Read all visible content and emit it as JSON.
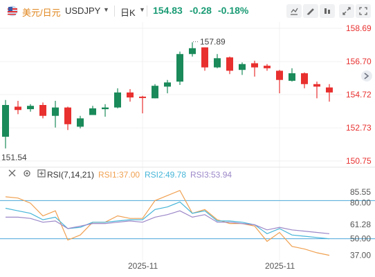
{
  "header": {
    "pair_cn": "美元/日元",
    "pair_symbol": "USDJPY",
    "period": "日K",
    "last_price": "154.83",
    "change": "-0.28",
    "change_pct": "-0.18%",
    "price_color": "#1a9b74"
  },
  "indicator": {
    "name": "RSI(7,14,21)",
    "rsi1_label": "RSI1:37.00",
    "rsi2_label": "RSI2:49.78",
    "rsi3_label": "RSI3:53.94",
    "rsi1_color": "#f0a050",
    "rsi2_color": "#45b5d8",
    "rsi3_color": "#9b87c8"
  },
  "icons": [
    "flag-icon",
    "close-icon",
    "settings-icon",
    "indicator-icon",
    "fullscreen-icon",
    "draw-icon",
    "compare-icon",
    "expand-icon",
    "scroll-arrow-icon"
  ],
  "chart_data": [
    {
      "type": "candlestick",
      "title": "USDJPY 日K",
      "y_ticks": [
        "158.69",
        "156.70",
        "154.72",
        "152.73",
        "150.75"
      ],
      "ylim": [
        150.75,
        158.69
      ],
      "x_ticks": [
        {
          "index": 11,
          "label": "2025-11"
        },
        {
          "index": 22,
          "label": "2025-11"
        }
      ],
      "annotations": [
        {
          "label": "157.89",
          "value": 157.89,
          "index": 15
        },
        {
          "label": "151.54",
          "value": 151.54,
          "index": 0
        }
      ],
      "up_color": "#1a8a5a",
      "down_color": "#e8302f",
      "candles": [
        {
          "o": 152.2,
          "h": 154.4,
          "l": 151.5,
          "c": 154.1
        },
        {
          "o": 154.0,
          "h": 154.35,
          "l": 153.55,
          "c": 153.8
        },
        {
          "o": 153.85,
          "h": 154.15,
          "l": 153.7,
          "c": 154.05
        },
        {
          "o": 154.1,
          "h": 154.25,
          "l": 153.3,
          "c": 153.45
        },
        {
          "o": 153.45,
          "h": 154.35,
          "l": 152.75,
          "c": 153.95
        },
        {
          "o": 153.95,
          "h": 154.0,
          "l": 152.6,
          "c": 152.95
        },
        {
          "o": 152.8,
          "h": 153.45,
          "l": 152.7,
          "c": 153.3
        },
        {
          "o": 153.5,
          "h": 154.05,
          "l": 153.5,
          "c": 153.9
        },
        {
          "o": 153.85,
          "h": 154.15,
          "l": 153.4,
          "c": 153.95
        },
        {
          "o": 153.95,
          "h": 155.1,
          "l": 153.9,
          "c": 154.85
        },
        {
          "o": 154.85,
          "h": 155.05,
          "l": 154.3,
          "c": 154.55
        },
        {
          "o": 154.6,
          "h": 154.65,
          "l": 153.6,
          "c": 154.55
        },
        {
          "o": 154.5,
          "h": 155.35,
          "l": 154.5,
          "c": 155.25
        },
        {
          "o": 155.2,
          "h": 155.6,
          "l": 154.8,
          "c": 155.45
        },
        {
          "o": 155.5,
          "h": 157.3,
          "l": 155.3,
          "c": 157.15
        },
        {
          "o": 157.15,
          "h": 157.85,
          "l": 157.0,
          "c": 157.5
        },
        {
          "o": 157.55,
          "h": 157.55,
          "l": 156.15,
          "c": 156.35
        },
        {
          "o": 156.35,
          "h": 157.15,
          "l": 156.3,
          "c": 156.9
        },
        {
          "o": 156.95,
          "h": 157.0,
          "l": 155.95,
          "c": 156.15
        },
        {
          "o": 156.2,
          "h": 156.65,
          "l": 155.9,
          "c": 156.55
        },
        {
          "o": 156.6,
          "h": 156.75,
          "l": 155.8,
          "c": 156.35
        },
        {
          "o": 156.45,
          "h": 156.55,
          "l": 156.15,
          "c": 156.3
        },
        {
          "o": 156.15,
          "h": 156.2,
          "l": 154.8,
          "c": 155.6
        },
        {
          "o": 155.55,
          "h": 156.3,
          "l": 155.5,
          "c": 156.0
        },
        {
          "o": 156.0,
          "h": 156.05,
          "l": 155.1,
          "c": 155.35
        },
        {
          "o": 155.35,
          "h": 155.5,
          "l": 154.5,
          "c": 155.2
        },
        {
          "o": 155.15,
          "h": 155.35,
          "l": 154.3,
          "c": 154.85
        }
      ]
    },
    {
      "type": "line",
      "title": "RSI(7,14,21)",
      "y_ticks": [
        "85.55",
        "80.00",
        "61.28",
        "50.00",
        "37.00"
      ],
      "ylim": [
        33,
        90
      ],
      "hlines": [
        80,
        50
      ],
      "series": [
        {
          "name": "RSI1",
          "color": "#f0a050",
          "values": [
            83,
            82,
            78,
            68,
            72,
            49,
            53,
            63,
            63,
            68,
            66,
            66,
            80,
            84,
            88,
            70,
            73,
            65,
            62,
            62,
            60,
            48,
            55,
            44,
            42,
            39,
            37
          ]
        },
        {
          "name": "RSI2",
          "color": "#45b5d8",
          "values": [
            74,
            72,
            70,
            65,
            67,
            58,
            59,
            63,
            63,
            64,
            65,
            65,
            73,
            75,
            79,
            70,
            72,
            64,
            64,
            63,
            61,
            54,
            58,
            53,
            52,
            51,
            50
          ]
        },
        {
          "name": "RSI3",
          "color": "#9b87c8",
          "values": [
            67,
            67,
            66,
            63,
            64,
            58,
            60,
            62,
            62,
            63,
            64,
            63,
            67,
            69,
            72,
            67,
            69,
            63,
            63,
            62,
            61,
            57,
            59,
            57,
            56,
            55,
            54
          ]
        }
      ]
    }
  ]
}
